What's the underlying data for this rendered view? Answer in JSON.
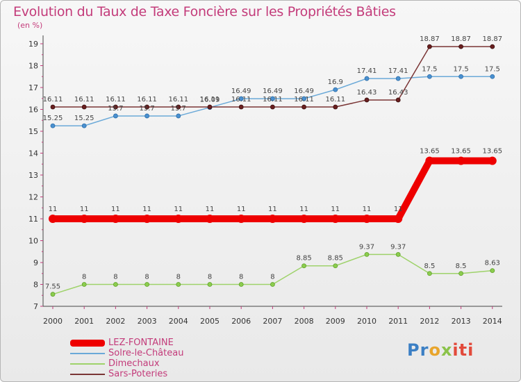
{
  "chart_data": {
    "type": "line",
    "title": "Evolution du Taux de Taxe Foncière sur les Propriétés Bâties",
    "ylabel": "(en %)",
    "xlabel": "",
    "x": [
      "2000",
      "2001",
      "2002",
      "2003",
      "2004",
      "2005",
      "2006",
      "2007",
      "2008",
      "2009",
      "2010",
      "2011",
      "2012",
      "2013",
      "2014"
    ],
    "ylim": [
      7,
      19
    ],
    "yticks": [
      7,
      8,
      9,
      10,
      11,
      12,
      13,
      14,
      15,
      16,
      17,
      18,
      19
    ],
    "grid": false,
    "legend_position": "bottom-left",
    "series": [
      {
        "name": "LEZ-FONTAINE",
        "color": "#ee0000",
        "values": [
          11,
          11,
          11,
          11,
          11,
          11,
          11,
          11,
          11,
          11,
          11,
          11,
          13.65,
          13.65,
          13.65
        ],
        "labels": [
          "11",
          "11",
          "11",
          "11",
          "11",
          "11",
          "11",
          "11",
          "11",
          "11",
          "11",
          "11",
          "13.65",
          "13.65",
          "13.65"
        ]
      },
      {
        "name": "Solre-le-Château",
        "color": "#6aa9d8",
        "values": [
          15.25,
          15.25,
          15.7,
          15.7,
          15.7,
          16.09,
          16.49,
          16.49,
          16.49,
          16.9,
          17.41,
          17.41,
          17.5,
          17.5,
          17.5
        ],
        "labels": [
          "15.25",
          "15.25",
          "15.7",
          "15.7",
          "15.7",
          "16.09",
          "16.49",
          "16.49",
          "16.49",
          "16.9",
          "17.41",
          "17.41",
          "17.5",
          "17.5",
          "17.5"
        ]
      },
      {
        "name": "Dimechaux",
        "color": "#9ed26a",
        "values": [
          7.55,
          8,
          8,
          8,
          8,
          8,
          8,
          8,
          8.85,
          8.85,
          9.37,
          9.37,
          8.5,
          8.5,
          8.63
        ],
        "labels": [
          "7.55",
          "8",
          "8",
          "8",
          "8",
          "8",
          "8",
          "8",
          "8.85",
          "8.85",
          "9.37",
          "9.37",
          "8.5",
          "8.5",
          "8.63"
        ]
      },
      {
        "name": "Sars-Poteries",
        "color": "#7a3535",
        "values": [
          16.11,
          16.11,
          16.11,
          16.11,
          16.11,
          16.11,
          16.11,
          16.11,
          16.11,
          16.11,
          16.43,
          16.43,
          18.87,
          18.87,
          18.87
        ],
        "labels": [
          "16.11",
          "16.11",
          "16.11",
          "16.11",
          "16.11",
          "16.11",
          "16.11",
          "16.11",
          "16.11",
          "16.11",
          "16.43",
          "16.43",
          "18.87",
          "18.87",
          "18.87"
        ]
      }
    ]
  },
  "logo": {
    "p1": "Pr",
    "p2": "o",
    "p3": "x",
    "p4": "iti"
  }
}
